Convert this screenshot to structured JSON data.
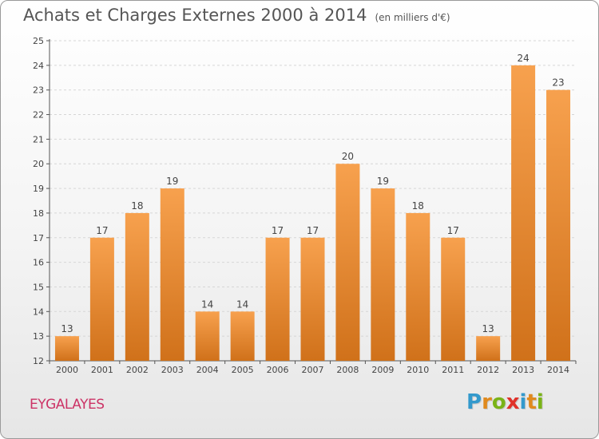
{
  "title": "Achats et Charges Externes 2000 à 2014",
  "unit": "(en milliers d'€)",
  "commune": "EYGALAYES",
  "logo": {
    "letters": [
      "P",
      "r",
      "o",
      "x",
      "i",
      "t",
      "i"
    ],
    "colors": [
      "#3399cc",
      "#e08a1e",
      "#7ab317",
      "#e0322a",
      "#3399cc",
      "#e08a1e",
      "#7ab317"
    ]
  },
  "colors": {
    "bar_light": "#f7a14e",
    "bar_dark": "#d0711a",
    "grid": "#d6d6d6",
    "axis": "#555555"
  },
  "chart_data": {
    "type": "bar",
    "categories": [
      "2000",
      "2001",
      "2002",
      "2003",
      "2004",
      "2005",
      "2006",
      "2007",
      "2008",
      "2009",
      "2010",
      "2011",
      "2012",
      "2013",
      "2014"
    ],
    "values": [
      13,
      17,
      18,
      19,
      14,
      14,
      17,
      17,
      20,
      19,
      18,
      17,
      13,
      24,
      23
    ],
    "ylim": [
      12,
      25
    ],
    "yticks": [
      12,
      13,
      14,
      15,
      16,
      17,
      18,
      19,
      20,
      21,
      22,
      23,
      24,
      25
    ],
    "grid": "horizontal dashed"
  }
}
